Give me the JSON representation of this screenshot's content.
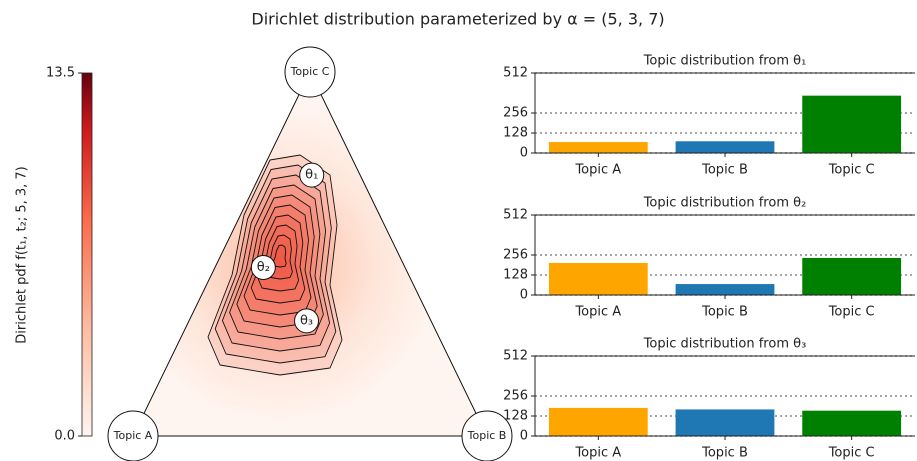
{
  "title": "Dirichlet distribution parameterized by α = (5, 3, 7)",
  "chart_data": [
    {
      "type": "ternary",
      "colorbar_label": "Dirichlet pdf f(t₁, t₂; 5, 3, 7)",
      "clim": [
        0,
        13.5
      ],
      "cticks": [
        {
          "value": 0,
          "label": "0.0"
        },
        13.5
      ],
      "vertices": [
        {
          "label": "Topic A",
          "color": "#ffa500"
        },
        {
          "label": "Topic B",
          "color": "#1f77b4"
        },
        {
          "label": "Topic C",
          "color": "#008000"
        }
      ],
      "points": [
        "θ₁",
        "θ₂",
        "θ₃"
      ]
    },
    {
      "type": "bar",
      "title": "Topic distribution from θ₁",
      "categories": [
        "Topic A",
        "Topic B",
        "Topic C"
      ],
      "values": [
        70,
        75,
        367
      ],
      "colors": [
        "#ffa500",
        "#1f77b4",
        "#008000"
      ],
      "ylim": [
        0,
        512
      ],
      "yticks": [
        0,
        128,
        256,
        512
      ],
      "grid": true
    },
    {
      "type": "bar",
      "title": "Topic distribution from θ₂",
      "categories": [
        "Topic A",
        "Topic B",
        "Topic C"
      ],
      "values": [
        205,
        70,
        237
      ],
      "colors": [
        "#ffa500",
        "#1f77b4",
        "#008000"
      ],
      "ylim": [
        0,
        512
      ],
      "yticks": [
        0,
        128,
        256,
        512
      ],
      "grid": true
    },
    {
      "type": "bar",
      "title": "Topic distribution from θ₃",
      "categories": [
        "Topic A",
        "Topic B",
        "Topic C"
      ],
      "values": [
        180,
        170,
        162
      ],
      "colors": [
        "#ffa500",
        "#1f77b4",
        "#008000"
      ],
      "ylim": [
        0,
        512
      ],
      "yticks": [
        0,
        128,
        256,
        512
      ],
      "grid": true
    }
  ]
}
